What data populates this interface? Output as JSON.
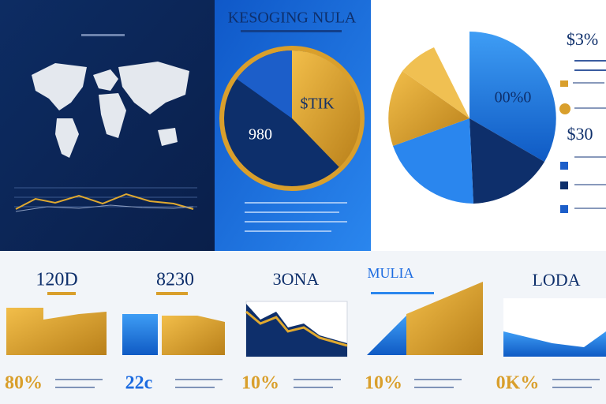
{
  "header": {
    "title": "KESOGING NULA"
  },
  "center_pie": {
    "value_label": "$TIK",
    "side_label": "980"
  },
  "right_stats": [
    "$3%",
    "00%0",
    "$30"
  ],
  "cards": [
    {
      "title": "120D",
      "footer": "80%"
    },
    {
      "title": "8230",
      "footer": "22c"
    },
    {
      "title": "3ONA",
      "footer": "10%"
    },
    {
      "title": "MULIA",
      "footer": "10%"
    },
    {
      "title": "LODA",
      "footer": "0K%"
    }
  ]
}
